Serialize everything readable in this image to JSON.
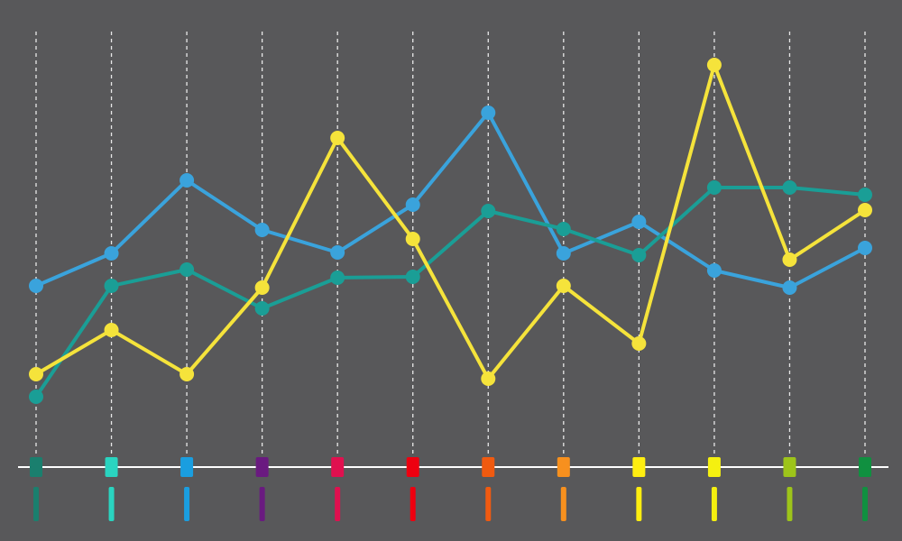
{
  "chart_data": {
    "type": "line",
    "categories": [
      null,
      null,
      null,
      null,
      null,
      null,
      null,
      null,
      null,
      null,
      null,
      null
    ],
    "category_colors": [
      "#1a7f6e",
      "#2ad4c0",
      "#1a9ee0",
      "#6a1a80",
      "#e0104f",
      "#ee0010",
      "#f05a10",
      "#f7901e",
      "#ffee10",
      "#f5f010",
      "#9dc41a",
      "#109040"
    ],
    "series": [
      {
        "color": "#3aa3dc",
        "values": [
          201,
          237,
          318,
          263,
          238,
          291,
          393,
          237,
          272,
          218,
          199,
          243
        ]
      },
      {
        "color": "#1a9e96",
        "values": [
          78,
          201,
          219,
          176,
          210,
          211,
          284,
          264,
          235,
          310,
          310,
          302
        ]
      },
      {
        "color": "#f5e33b",
        "values": [
          103,
          152,
          103,
          199,
          365,
          253,
          98,
          201,
          137,
          446,
          230,
          285
        ]
      }
    ],
    "ylim": [
      0,
      500
    ],
    "grid": true
  }
}
